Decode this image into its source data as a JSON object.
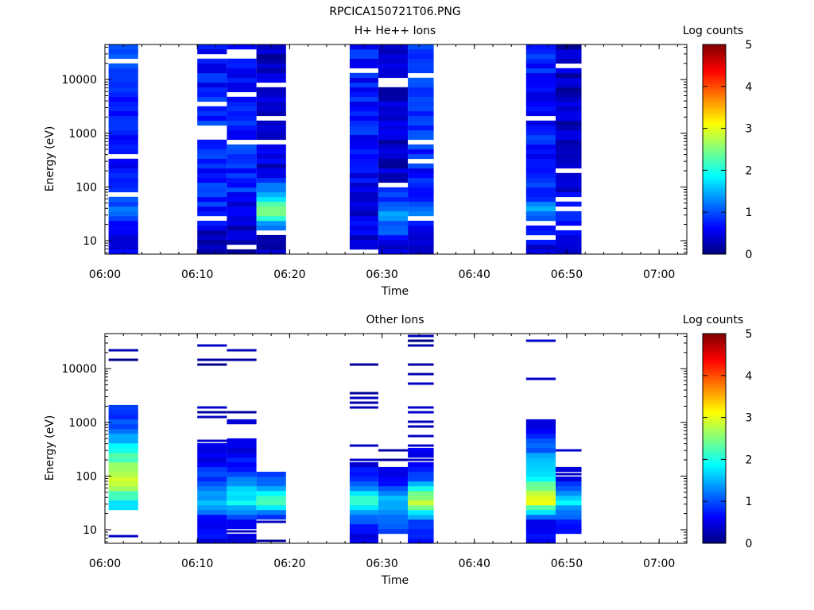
{
  "figure_title": "RPCICA150721T06.PNG",
  "chart_data": [
    {
      "type": "heatmap",
      "title": "H+ He++ Ions",
      "xlabel": "Time",
      "ylabel": "Energy (eV)",
      "x_ticks": [
        "06:00",
        "06:10",
        "06:20",
        "06:30",
        "06:40",
        "06:50",
        "07:00"
      ],
      "y_ticks": [
        "10",
        "100",
        "1000",
        "10000"
      ],
      "y_scale": "log",
      "ylim": [
        5.6,
        45000
      ],
      "xlim": [
        "06:00",
        "07:03"
      ],
      "colorbar": {
        "label": "Log counts",
        "range": [
          0,
          5
        ],
        "ticks": [
          "0",
          "1",
          "2",
          "3",
          "4",
          "5"
        ],
        "colormap": "jet"
      },
      "time_blocks": [
        {
          "start": "06:00.4",
          "end": "06:03.6",
          "profile": [
            0.5,
            0.55,
            1.15,
            1.05,
            0.6,
            0.9,
            0.75,
            0.85,
            0.8,
            0.9,
            0.95
          ]
        },
        {
          "start": "06:10.0",
          "end": "06:13.2",
          "profile": [
            0.4,
            0.3,
            0.75,
            0.8,
            0.75,
            0.9,
            0.85,
            0.8,
            0.7,
            0.7,
            0.75
          ]
        },
        {
          "start": "06:13.2",
          "end": "06:16.4",
          "profile": [
            0.35,
            0.3,
            0.5,
            0.8,
            0.7,
            0.85,
            0.75,
            0.7,
            0.65,
            0.6,
            0.55
          ]
        },
        {
          "start": "06:16.4",
          "end": "06:19.6",
          "profile": [
            0.25,
            0.5,
            2.6,
            1.25,
            0.45,
            0.4,
            0.35,
            0.3,
            0.35,
            0.3,
            0.3
          ]
        },
        {
          "start": "06:26.5",
          "end": "06:29.6",
          "profile": [
            0.3,
            0.5,
            0.45,
            0.45,
            0.6,
            0.7,
            0.75,
            0.7,
            0.7,
            0.75,
            0.75
          ]
        },
        {
          "start": "06:29.6",
          "end": "06:32.8",
          "profile": [
            0.2,
            0.9,
            1.5,
            0.65,
            0.35,
            0.35,
            0.4,
            0.35,
            0.35,
            0.35,
            0.35
          ]
        },
        {
          "start": "06:32.8",
          "end": "06:35.6",
          "profile": [
            0.6,
            0.5,
            1.3,
            0.7,
            0.75,
            0.8,
            0.85,
            0.85,
            0.8,
            0.85,
            0.9
          ]
        },
        {
          "start": "06:45.6",
          "end": "06:48.8",
          "profile": [
            0.45,
            0.55,
            1.35,
            0.9,
            0.6,
            0.7,
            0.75,
            0.7,
            0.7,
            0.75,
            0.7
          ]
        },
        {
          "start": "06:48.8",
          "end": "06:51.6",
          "profile": [
            0.2,
            0.6,
            0.95,
            0.5,
            0.4,
            0.35,
            0.35,
            0.3,
            0.35,
            0.35,
            0.3
          ]
        }
      ]
    },
    {
      "type": "heatmap",
      "title": "Other Ions",
      "xlabel": "Time",
      "ylabel": "Energy (eV)",
      "x_ticks": [
        "06:00",
        "06:10",
        "06:20",
        "06:30",
        "06:40",
        "06:50",
        "07:00"
      ],
      "y_ticks": [
        "10",
        "100",
        "1000",
        "10000"
      ],
      "y_scale": "log",
      "ylim": [
        5.6,
        45000
      ],
      "xlim": [
        "06:00",
        "07:03"
      ],
      "colorbar": {
        "label": "Log counts",
        "range": [
          0,
          5
        ],
        "ticks": [
          "0",
          "1",
          "2",
          "3",
          "4",
          "5"
        ],
        "colormap": "jet"
      },
      "time_blocks": [
        {
          "start": "06:00.4",
          "end": "06:03.6",
          "profile": [
            0.3,
            null,
            1.9,
            3.0,
            2.3,
            1.5,
            0.8,
            null,
            null,
            0.2,
            null
          ]
        },
        {
          "start": "06:10.0",
          "end": "06:13.2",
          "profile": [
            0.6,
            0.5,
            1.6,
            1.0,
            0.5,
            0.35,
            0.3,
            null,
            null,
            0.2,
            null
          ]
        },
        {
          "start": "06:13.2",
          "end": "06:16.4",
          "profile": [
            0.3,
            0.5,
            2.0,
            1.2,
            0.6,
            0.4,
            0.3,
            null,
            null,
            0.2,
            null
          ]
        },
        {
          "start": "06:16.4",
          "end": "06:19.6",
          "profile": [
            0.2,
            0.4,
            2.2,
            1.0,
            null,
            null,
            null,
            null,
            null,
            null,
            null
          ]
        },
        {
          "start": "06:26.5",
          "end": "06:29.6",
          "profile": [
            0.35,
            0.9,
            2.3,
            0.8,
            0.4,
            0.3,
            0.2,
            0.2,
            null,
            0.2,
            null
          ]
        },
        {
          "start": "06:29.6",
          "end": "06:32.8",
          "profile": [
            null,
            1.0,
            1.6,
            0.7,
            0.3,
            null,
            null,
            null,
            null,
            null,
            null
          ]
        },
        {
          "start": "06:32.8",
          "end": "06:35.6",
          "profile": [
            0.6,
            0.9,
            3.0,
            1.1,
            0.5,
            0.3,
            0.3,
            null,
            0.2,
            0.2,
            0.2
          ]
        },
        {
          "start": "06:45.6",
          "end": "06:48.8",
          "profile": [
            0.5,
            0.6,
            3.2,
            2.0,
            1.5,
            0.8,
            0.3,
            null,
            0.2,
            null,
            0.2
          ]
        },
        {
          "start": "06:48.8",
          "end": "06:51.6",
          "profile": [
            null,
            0.8,
            1.8,
            0.6,
            0.25,
            null,
            null,
            null,
            null,
            null,
            null
          ]
        }
      ]
    }
  ]
}
